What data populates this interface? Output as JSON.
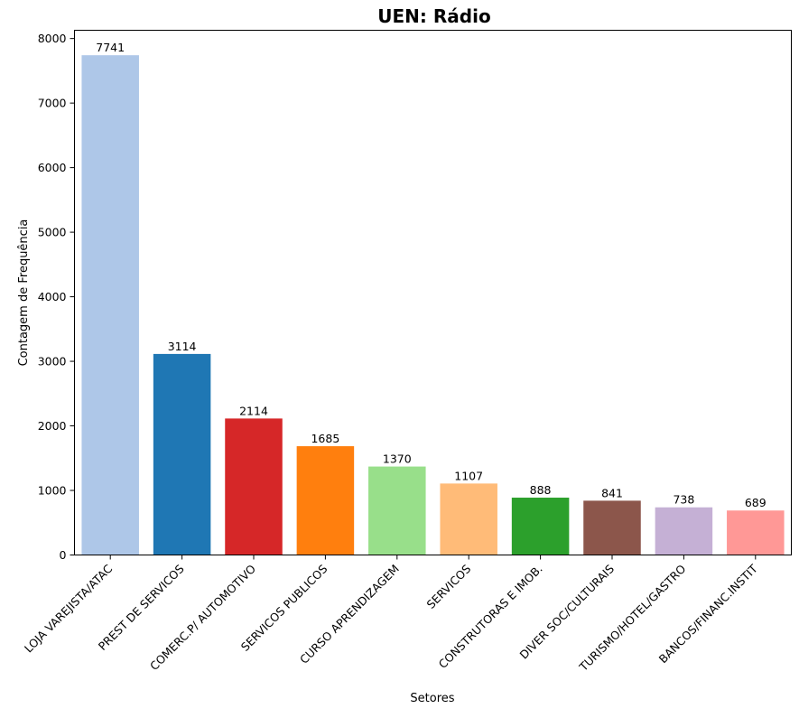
{
  "chart_data": {
    "type": "bar",
    "title": "UEN: Rádio",
    "xlabel": "Setores",
    "ylabel": "Contagem de Frequência",
    "categories": [
      "LOJA VAREJISTA/ATAC",
      "PREST DE SERVICOS",
      "COMERC.P/ AUTOMOTIVO",
      "SERVICOS PUBLICOS",
      "CURSO APRENDIZAGEM",
      "SERVICOS",
      "CONSTRUTORAS E IMOB.",
      "DIVER SOC/CULTURAIS",
      "TURISMO/HOTEL/GASTRO",
      "BANCOS/FINANC.INSTIT"
    ],
    "values": [
      7741,
      3114,
      2114,
      1685,
      1370,
      1107,
      888,
      841,
      738,
      689
    ],
    "colors": [
      "#aec7e8",
      "#1f77b4",
      "#d62728",
      "#ff7f0e",
      "#98df8a",
      "#ffbb78",
      "#2ca02c",
      "#8c564b",
      "#c5b0d5",
      "#ff9896"
    ],
    "yticks": [
      0,
      1000,
      2000,
      3000,
      4000,
      5000,
      6000,
      7000,
      8000
    ],
    "ylim": [
      0,
      8128
    ],
    "grid": false,
    "legend": false
  }
}
